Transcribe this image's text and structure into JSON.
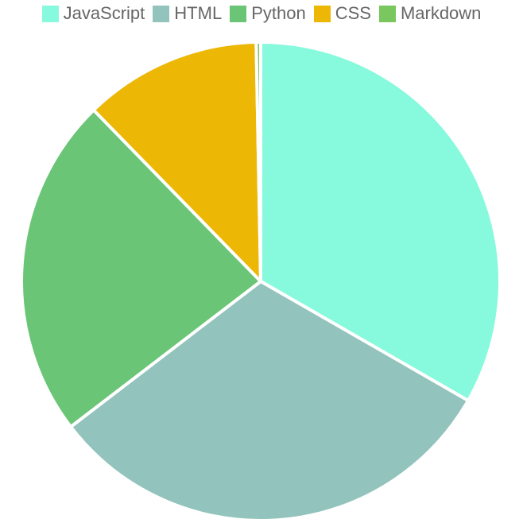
{
  "chart_data": {
    "type": "pie",
    "legend_position": "top",
    "series": [
      {
        "name": "JavaScript",
        "value": 33.3,
        "color": "#87F9DC"
      },
      {
        "name": "HTML",
        "value": 31.3,
        "color": "#93C3BD"
      },
      {
        "name": "Python",
        "value": 23.1,
        "color": "#6BC577"
      },
      {
        "name": "CSS",
        "value": 12.0,
        "color": "#EDB705"
      },
      {
        "name": "Markdown",
        "value": 0.3,
        "color": "#79C75E"
      }
    ]
  }
}
